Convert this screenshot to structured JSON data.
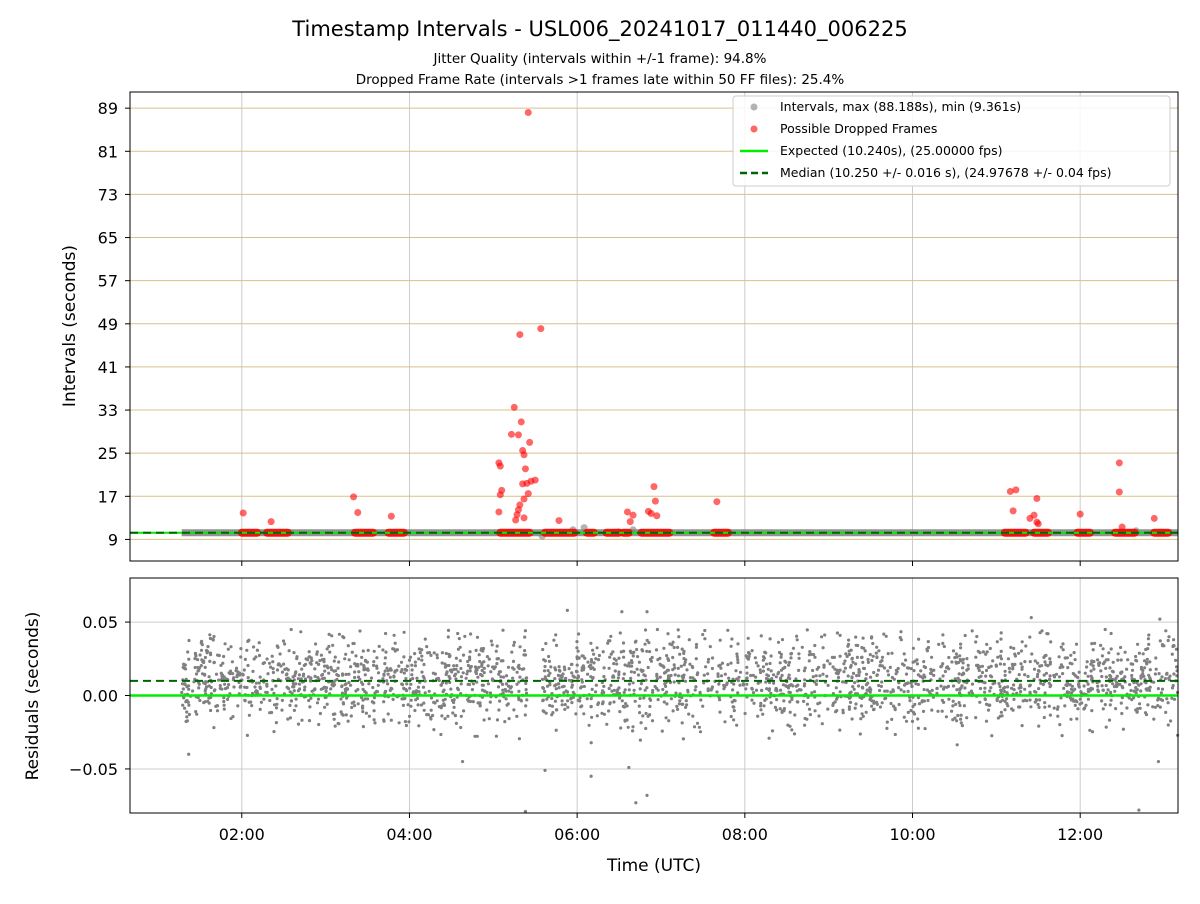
{
  "figure": {
    "title": "Timestamp Intervals - USL006_20241017_011440_006225",
    "subtitle1": "Jitter Quality (intervals within +/-1 frame): 94.8%",
    "subtitle2": "Dropped Frame Rate (intervals >1 frames late within 50 FF files): 25.4%"
  },
  "colors": {
    "intervals": "#808080",
    "dropped": "#ff0000",
    "expected": "#00ee00",
    "median": "#006400",
    "hgrid": "#d9c08c",
    "vgrid": "#cccccc"
  },
  "chart_data": [
    {
      "type": "scatter",
      "ylabel": "Intervals (seconds)",
      "xlim": [
        "00:40",
        "13:10"
      ],
      "ylim": [
        5,
        92
      ],
      "yticks": [
        9,
        17,
        25,
        33,
        41,
        49,
        57,
        65,
        73,
        81,
        89
      ],
      "grid": true,
      "legend_position": "top-right",
      "legend": [
        "Intervals, max (88.188s), min (9.361s)",
        "Possible Dropped Frames",
        "Expected (10.240s), (25.00000 fps)",
        "Median (10.250 +/- 0.016 s), (24.97678 +/- 0.04 fps)"
      ],
      "expected_line": 10.24,
      "median_line": 10.25,
      "series": [
        {
          "name": "Intervals, max (88.188s), min (9.361s)",
          "x_range": [
            "01:17",
            "13:10"
          ],
          "typical_value": 10.25,
          "values_sample": [
            [
              "05:35",
              9.6
            ],
            [
              "05:57",
              10.8
            ],
            [
              "06:05",
              11.2
            ],
            [
              "06:30",
              10.4
            ],
            [
              "06:40",
              10.8
            ],
            [
              "12:40",
              10.6
            ]
          ]
        },
        {
          "name": "Possible Dropped Frames",
          "points": [
            [
              "02:01",
              13.9
            ],
            [
              "02:21",
              12.3
            ],
            [
              "03:20",
              16.9
            ],
            [
              "03:23",
              14.0
            ],
            [
              "03:47",
              13.3
            ],
            [
              "05:04",
              23.2
            ],
            [
              "05:05",
              22.6
            ],
            [
              "05:05",
              17.3
            ],
            [
              "05:06",
              18.1
            ],
            [
              "05:04",
              14.1
            ],
            [
              "05:13",
              28.5
            ],
            [
              "05:15",
              33.5
            ],
            [
              "05:18",
              28.4
            ],
            [
              "05:19",
              47.0
            ],
            [
              "05:20",
              30.8
            ],
            [
              "05:21",
              25.5
            ],
            [
              "05:22",
              24.7
            ],
            [
              "05:23",
              22.1
            ],
            [
              "05:24",
              19.4
            ],
            [
              "05:25",
              17.5
            ],
            [
              "05:26",
              27.0
            ],
            [
              "05:27",
              19.8
            ],
            [
              "05:22",
              16.5
            ],
            [
              "05:19",
              15.4
            ],
            [
              "05:18",
              14.5
            ],
            [
              "05:17",
              13.6
            ],
            [
              "05:21",
              19.3
            ],
            [
              "05:22",
              13.0
            ],
            [
              "05:16",
              12.6
            ],
            [
              "05:25",
              88.2
            ],
            [
              "05:34",
              48.1
            ],
            [
              "05:30",
              20.0
            ],
            [
              "05:47",
              12.5
            ],
            [
              "06:36",
              14.1
            ],
            [
              "06:38",
              12.3
            ],
            [
              "06:40",
              13.5
            ],
            [
              "06:51",
              14.2
            ],
            [
              "06:53",
              13.8
            ],
            [
              "06:55",
              18.8
            ],
            [
              "06:56",
              16.1
            ],
            [
              "06:57",
              13.4
            ],
            [
              "07:40",
              16.0
            ],
            [
              "11:10",
              17.9
            ],
            [
              "11:14",
              18.2
            ],
            [
              "11:12",
              14.3
            ],
            [
              "11:24",
              12.9
            ],
            [
              "11:27",
              13.5
            ],
            [
              "11:29",
              16.6
            ],
            [
              "11:29",
              12.2
            ],
            [
              "11:30",
              11.9
            ],
            [
              "12:00",
              13.7
            ],
            [
              "12:28",
              23.2
            ],
            [
              "12:28",
              17.8
            ],
            [
              "12:30",
              11.3
            ],
            [
              "12:53",
              12.9
            ]
          ],
          "clusters_at_baseline": [
            [
              "02:00",
              "02:11"
            ],
            [
              "02:18",
              "02:33"
            ],
            [
              "03:21",
              "03:34"
            ],
            [
              "03:45",
              "03:56"
            ],
            [
              "05:05",
              "05:26"
            ],
            [
              "05:37",
              "05:58"
            ],
            [
              "06:07",
              "06:12"
            ],
            [
              "06:21",
              "06:30"
            ],
            [
              "06:33",
              "06:37"
            ],
            [
              "06:46",
              "07:06"
            ],
            [
              "07:38",
              "07:48"
            ],
            [
              "11:06",
              "11:21"
            ],
            [
              "11:27",
              "11:37"
            ],
            [
              "11:58",
              "12:07"
            ],
            [
              "12:25",
              "12:39"
            ],
            [
              "12:53",
              "13:03"
            ]
          ]
        }
      ]
    },
    {
      "type": "scatter",
      "xlabel": "Time (UTC)",
      "ylabel": "Residuals (seconds)",
      "xlim": [
        "00:40",
        "13:10"
      ],
      "ylim": [
        -0.08,
        0.08
      ],
      "xticks": [
        "02:00",
        "04:00",
        "06:00",
        "08:00",
        "10:00",
        "12:00"
      ],
      "yticks": [
        -0.05,
        0.0,
        0.05
      ],
      "ytick_labels": [
        "−0.05",
        "0.00",
        "0.05"
      ],
      "grid": true,
      "expected_line": 0.0,
      "median_line": 0.01,
      "series": [
        {
          "name": "Residuals",
          "x_range": [
            "01:17",
            "13:10"
          ],
          "gap": [
            "05:24",
            "05:35"
          ],
          "center": 0.01,
          "spread": 0.02,
          "outliers": [
            [
              "01:22",
              -0.04
            ],
            [
              "04:38",
              -0.045
            ],
            [
              "05:23",
              -0.079
            ],
            [
              "05:37",
              -0.051
            ],
            [
              "06:10",
              -0.055
            ],
            [
              "06:37",
              -0.049
            ],
            [
              "06:42",
              -0.073
            ],
            [
              "06:50",
              -0.068
            ],
            [
              "05:53",
              0.058
            ],
            [
              "06:32",
              0.057
            ],
            [
              "06:50",
              0.057
            ],
            [
              "11:25",
              0.053
            ],
            [
              "12:57",
              0.052
            ],
            [
              "12:42",
              -0.078
            ],
            [
              "12:56",
              -0.045
            ]
          ]
        }
      ]
    }
  ]
}
